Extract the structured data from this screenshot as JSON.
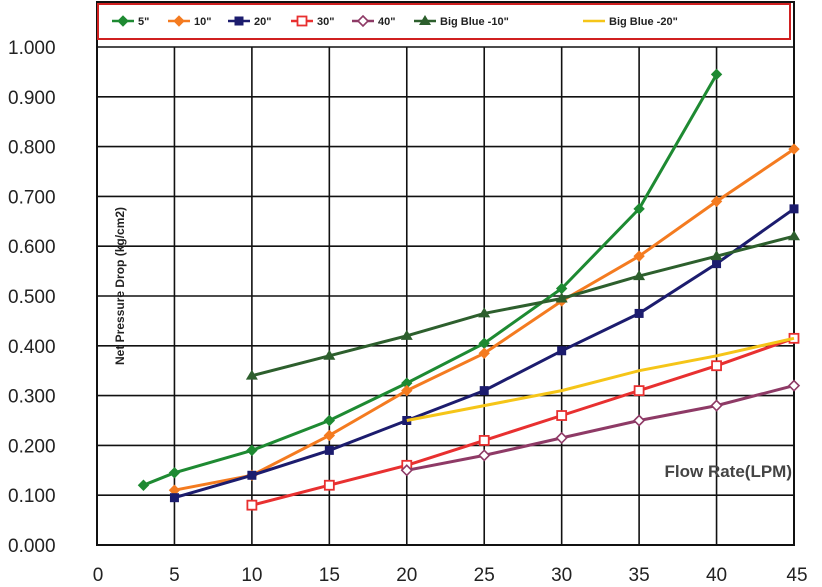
{
  "chart_data": {
    "type": "line",
    "xlabel": "Flow Rate(LPM)",
    "ylabel": "Net Pressure Drop (kg/cm2)",
    "xlim": [
      0,
      45
    ],
    "ylim": [
      0,
      1.0
    ],
    "x_ticks": [
      "0",
      "5",
      "10",
      "15",
      "20",
      "25",
      "30",
      "35",
      "40",
      "45"
    ],
    "y_ticks": [
      "0.000",
      "0.100",
      "0.200",
      "0.300",
      "0.400",
      "0.500",
      "0.600",
      "0.700",
      "0.800",
      "0.900",
      "1.000"
    ],
    "grid": true,
    "legend_position": "top",
    "series": [
      {
        "name": "5\"",
        "color": "#1e8a32",
        "marker": "diamond",
        "points": [
          [
            3,
            0.12
          ],
          [
            5,
            0.145
          ],
          [
            10,
            0.19
          ],
          [
            15,
            0.25
          ],
          [
            20,
            0.325
          ],
          [
            25,
            0.405
          ],
          [
            30,
            0.515
          ],
          [
            35,
            0.675
          ],
          [
            40,
            0.945
          ]
        ]
      },
      {
        "name": "10\"",
        "color": "#f47b20",
        "marker": "diamond",
        "points": [
          [
            5,
            0.11
          ],
          [
            10,
            0.14
          ],
          [
            15,
            0.22
          ],
          [
            20,
            0.31
          ],
          [
            25,
            0.385
          ],
          [
            30,
            0.49
          ],
          [
            35,
            0.58
          ],
          [
            40,
            0.69
          ],
          [
            45,
            0.795
          ]
        ]
      },
      {
        "name": "20\"",
        "color": "#1c1c6e",
        "marker": "square",
        "points": [
          [
            5,
            0.095
          ],
          [
            10,
            0.14
          ],
          [
            15,
            0.19
          ],
          [
            20,
            0.25
          ],
          [
            25,
            0.31
          ],
          [
            30,
            0.39
          ],
          [
            35,
            0.465
          ],
          [
            40,
            0.565
          ],
          [
            45,
            0.675
          ]
        ]
      },
      {
        "name": "30\"",
        "color": "#e83030",
        "marker": "square-open",
        "points": [
          [
            10,
            0.08
          ],
          [
            15,
            0.12
          ],
          [
            20,
            0.16
          ],
          [
            25,
            0.21
          ],
          [
            30,
            0.26
          ],
          [
            35,
            0.31
          ],
          [
            40,
            0.36
          ],
          [
            45,
            0.415
          ]
        ]
      },
      {
        "name": "40\"",
        "color": "#8e3a66",
        "marker": "diamond-open",
        "points": [
          [
            20,
            0.15
          ],
          [
            25,
            0.18
          ],
          [
            30,
            0.215
          ],
          [
            35,
            0.25
          ],
          [
            40,
            0.28
          ],
          [
            45,
            0.32
          ]
        ]
      },
      {
        "name": "Big Blue -10\"",
        "color": "#2d5f2d",
        "marker": "triangle",
        "points": [
          [
            10,
            0.34
          ],
          [
            15,
            0.38
          ],
          [
            20,
            0.42
          ],
          [
            25,
            0.465
          ],
          [
            30,
            0.495
          ],
          [
            35,
            0.54
          ],
          [
            40,
            0.58
          ],
          [
            45,
            0.62
          ]
        ]
      },
      {
        "name": "Big Blue -20\"",
        "color": "#f5c518",
        "marker": "none",
        "points": [
          [
            20,
            0.25
          ],
          [
            25,
            0.28
          ],
          [
            30,
            0.31
          ],
          [
            35,
            0.35
          ],
          [
            40,
            0.38
          ],
          [
            45,
            0.415
          ]
        ]
      }
    ]
  }
}
